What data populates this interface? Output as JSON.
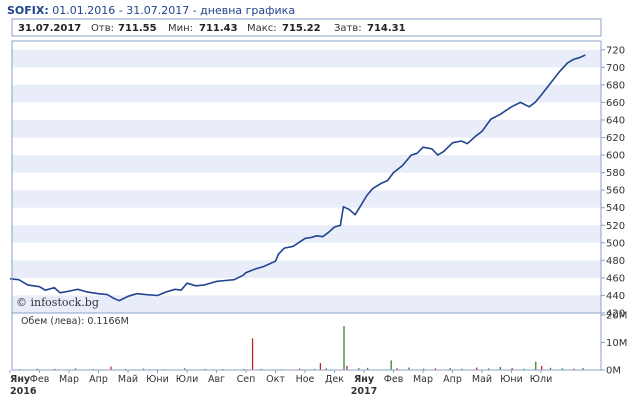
{
  "header": {
    "symbol": "SOFIX:",
    "subtitle": " 01.01.2016 - 31.07.2017 - дневна графика"
  },
  "info": {
    "date": "31.07.2017",
    "open_label": "Отв:",
    "open_value": "711.55",
    "min_label": "Мин:",
    "min_value": "711.43",
    "max_label": "Макс:",
    "max_value": "715.22",
    "close_label": "Затв:",
    "close_value": "714.31"
  },
  "copyright": "© infostock.bg",
  "volume_label": "Обем (лева): 0.1166M",
  "colors": {
    "line": "#21448f",
    "band": "#e8edf9",
    "frame": "#8da1c8",
    "vol_green": "#2e8b2e",
    "vol_red": "#c22222"
  },
  "chart_data": {
    "type": "line",
    "title": "SOFIX",
    "ylim": [
      420,
      730
    ],
    "yticks": [
      420,
      440,
      460,
      480,
      500,
      520,
      540,
      560,
      580,
      600,
      620,
      640,
      660,
      680,
      700,
      720
    ],
    "x_labels": [
      "Яну",
      "Фев",
      "Мар",
      "Апр",
      "Май",
      "Юни",
      "Юли",
      "Авг",
      "Сеп",
      "Окт",
      "Ное",
      "Дек",
      "Яну",
      "Фев",
      "Мар",
      "Апр",
      "Май",
      "Юни",
      "Юли"
    ],
    "year_labels": [
      {
        "label": "2016",
        "under": 0
      },
      {
        "label": "2017",
        "under": 12
      }
    ],
    "series": [
      {
        "values": [
          [
            0,
            459
          ],
          [
            0.3,
            458
          ],
          [
            0.6,
            452
          ],
          [
            1.0,
            450
          ],
          [
            1.2,
            446
          ],
          [
            1.5,
            449
          ],
          [
            1.7,
            443
          ],
          [
            2.0,
            445
          ],
          [
            2.3,
            447
          ],
          [
            2.6,
            444
          ],
          [
            3.0,
            442
          ],
          [
            3.3,
            441
          ],
          [
            3.5,
            437
          ],
          [
            3.7,
            434
          ],
          [
            4.0,
            439
          ],
          [
            4.3,
            442
          ],
          [
            4.6,
            441
          ],
          [
            5.0,
            440
          ],
          [
            5.3,
            444
          ],
          [
            5.6,
            447
          ],
          [
            5.8,
            446
          ],
          [
            6.0,
            454
          ],
          [
            6.3,
            451
          ],
          [
            6.6,
            452
          ],
          [
            7.0,
            456
          ],
          [
            7.3,
            457
          ],
          [
            7.6,
            458
          ],
          [
            7.9,
            463
          ],
          [
            8.0,
            466
          ],
          [
            8.3,
            470
          ],
          [
            8.6,
            473
          ],
          [
            9.0,
            479
          ],
          [
            9.1,
            487
          ],
          [
            9.3,
            494
          ],
          [
            9.6,
            496
          ],
          [
            10.0,
            505
          ],
          [
            10.2,
            506
          ],
          [
            10.4,
            508
          ],
          [
            10.6,
            507
          ],
          [
            10.8,
            512
          ],
          [
            11.0,
            518
          ],
          [
            11.2,
            520
          ],
          [
            11.3,
            541
          ],
          [
            11.5,
            538
          ],
          [
            11.7,
            532
          ],
          [
            11.9,
            543
          ],
          [
            12.1,
            554
          ],
          [
            12.3,
            562
          ],
          [
            12.6,
            568
          ],
          [
            12.8,
            571
          ],
          [
            13.0,
            580
          ],
          [
            13.3,
            588
          ],
          [
            13.6,
            600
          ],
          [
            13.8,
            602
          ],
          [
            14.0,
            609
          ],
          [
            14.3,
            607
          ],
          [
            14.5,
            600
          ],
          [
            14.7,
            604
          ],
          [
            15.0,
            614
          ],
          [
            15.3,
            616
          ],
          [
            15.5,
            613
          ],
          [
            15.8,
            622
          ],
          [
            16.0,
            627
          ],
          [
            16.3,
            641
          ],
          [
            16.6,
            646
          ],
          [
            17.0,
            655
          ],
          [
            17.3,
            660
          ],
          [
            17.6,
            655
          ],
          [
            17.8,
            660
          ],
          [
            18.0,
            668
          ],
          [
            18.3,
            681
          ],
          [
            18.6,
            694
          ],
          [
            18.9,
            705
          ],
          [
            19.1,
            709
          ],
          [
            19.3,
            711
          ],
          [
            19.5,
            714
          ]
        ]
      }
    ],
    "volume": {
      "unit": "M",
      "ylim": [
        0,
        20
      ],
      "yticks": [
        0,
        10,
        20
      ],
      "bars": [
        [
          0.3,
          0.3,
          "g"
        ],
        [
          0.9,
          0.5,
          "g"
        ],
        [
          1.5,
          0.4,
          "r"
        ],
        [
          2.2,
          0.6,
          "g"
        ],
        [
          2.8,
          0.3,
          "r"
        ],
        [
          3.4,
          1.2,
          "r"
        ],
        [
          3.9,
          0.4,
          "g"
        ],
        [
          4.5,
          0.5,
          "g"
        ],
        [
          5.2,
          0.3,
          "r"
        ],
        [
          5.9,
          0.6,
          "g"
        ],
        [
          6.6,
          0.4,
          "g"
        ],
        [
          7.2,
          0.3,
          "r"
        ],
        [
          7.9,
          0.4,
          "g"
        ],
        [
          8.2,
          11.5,
          "r"
        ],
        [
          8.5,
          0.4,
          "g"
        ],
        [
          9.2,
          0.3,
          "g"
        ],
        [
          9.8,
          0.5,
          "r"
        ],
        [
          10.3,
          0.4,
          "g"
        ],
        [
          10.5,
          2.5,
          "r"
        ],
        [
          10.7,
          0.6,
          "g"
        ],
        [
          11.3,
          16.0,
          "g"
        ],
        [
          11.4,
          1.5,
          "r"
        ],
        [
          11.8,
          0.7,
          "g"
        ],
        [
          12.1,
          0.8,
          "g"
        ],
        [
          12.9,
          3.5,
          "g"
        ],
        [
          13.1,
          0.6,
          "r"
        ],
        [
          13.5,
          0.9,
          "g"
        ],
        [
          14.0,
          0.5,
          "g"
        ],
        [
          14.4,
          0.6,
          "r"
        ],
        [
          14.9,
          0.7,
          "g"
        ],
        [
          15.3,
          0.5,
          "g"
        ],
        [
          15.8,
          0.9,
          "r"
        ],
        [
          16.2,
          0.6,
          "g"
        ],
        [
          16.6,
          1.1,
          "g"
        ],
        [
          17.0,
          0.7,
          "r"
        ],
        [
          17.4,
          0.5,
          "g"
        ],
        [
          17.8,
          3.0,
          "g"
        ],
        [
          18.0,
          1.5,
          "r"
        ],
        [
          18.3,
          0.8,
          "g"
        ],
        [
          18.7,
          0.6,
          "g"
        ],
        [
          19.1,
          0.5,
          "r"
        ],
        [
          19.4,
          0.7,
          "g"
        ]
      ]
    }
  }
}
